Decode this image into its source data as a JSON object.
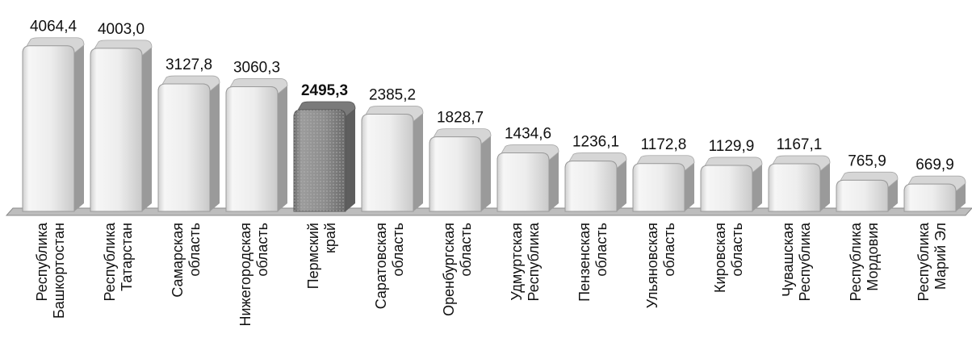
{
  "chart_data": {
    "type": "bar",
    "title": "",
    "xlabel": "",
    "ylabel": "",
    "ylim": [
      0,
      4300
    ],
    "grid": false,
    "legend": "none",
    "highlight_index": 4,
    "colors": {
      "bar_top": "#fafafa",
      "bar_mid": "#e6e6e6",
      "bar_side": "#9a9a9a",
      "highlight_front": "#8f8f8f",
      "highlight_side": "#5e5e5e",
      "floor": "#bdbdbd",
      "text": "#111111"
    },
    "categories": [
      [
        "Республика",
        "Башкортостан"
      ],
      [
        "Республика",
        "Татарстан"
      ],
      [
        "Самарская",
        "область"
      ],
      [
        "Нижегородская",
        "область"
      ],
      [
        "Пермский",
        "край"
      ],
      [
        "Саратовская",
        "область"
      ],
      [
        "Оренбургская",
        "область"
      ],
      [
        "Удмуртская",
        "Республика"
      ],
      [
        "Пензенская",
        "область"
      ],
      [
        "Ульяновская",
        "область"
      ],
      [
        "Кировская",
        "область"
      ],
      [
        "Чувашская",
        "Республика"
      ],
      [
        "Республика",
        "Мордовия"
      ],
      [
        "Республика",
        "Марий Эл"
      ]
    ],
    "values": [
      4064.4,
      4003.0,
      3127.8,
      3060.3,
      2495.3,
      2385.2,
      1828.7,
      1434.6,
      1236.1,
      1172.8,
      1129.9,
      1167.1,
      765.9,
      669.9
    ],
    "value_labels": [
      "4064,4",
      "4003,0",
      "3127,8",
      "3060,3",
      "2495,3",
      "2385,2",
      "1828,7",
      "1434,6",
      "1236,1",
      "1172,8",
      "1129,9",
      "1167,1",
      "765,9",
      "669,9"
    ]
  }
}
